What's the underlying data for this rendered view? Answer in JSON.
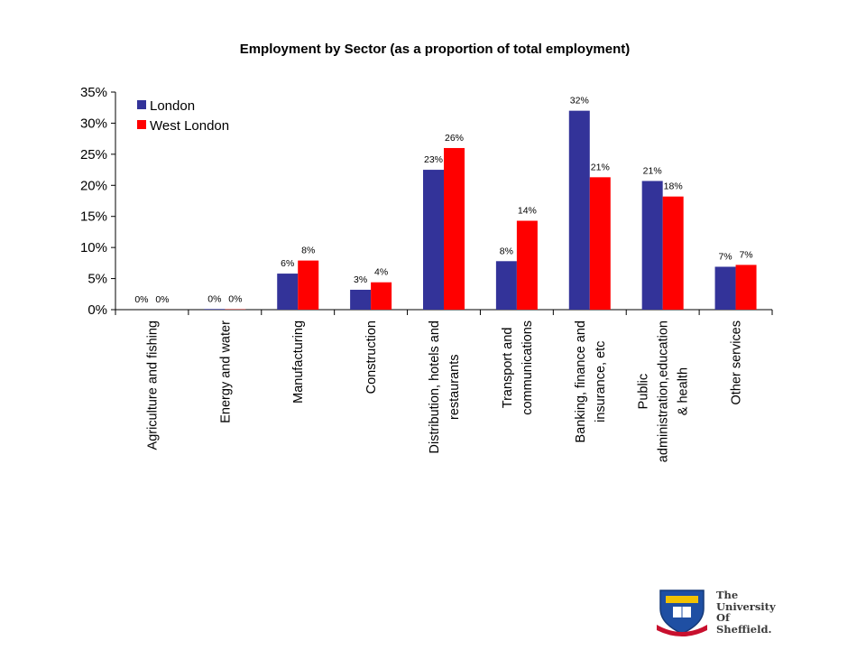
{
  "chart_data": {
    "type": "bar",
    "title": "Employment by Sector (as a proportion of total employment)",
    "categories": [
      [
        "Agriculture and fishing"
      ],
      [
        "Energy and water"
      ],
      [
        "Manufacturing"
      ],
      [
        "Construction"
      ],
      [
        "Distribution, hotels and",
        "restaurants"
      ],
      [
        "Transport and",
        "communications"
      ],
      [
        "Banking, finance and",
        "insurance, etc"
      ],
      [
        "Public",
        "administration,education",
        "& health"
      ],
      [
        "Other services"
      ]
    ],
    "series": [
      {
        "name": "London",
        "color": "#333399",
        "values": [
          0.001,
          0.1,
          5.8,
          3.2,
          22.5,
          7.8,
          32.0,
          20.7,
          6.9
        ],
        "labels": [
          "0%",
          "0%",
          "6%",
          "3%",
          "23%",
          "8%",
          "32%",
          "21%",
          "7%"
        ]
      },
      {
        "name": "West London",
        "color": "#ff0000",
        "values": [
          0.001,
          0.05,
          7.9,
          4.4,
          26.0,
          14.3,
          21.3,
          18.2,
          7.2
        ],
        "labels": [
          "0%",
          "0%",
          "8%",
          "4%",
          "26%",
          "14%",
          "21%",
          "18%",
          "7%"
        ]
      }
    ],
    "yaxis": {
      "min": 0,
      "max": 35,
      "step": 5,
      "tick_labels": [
        "0%",
        "5%",
        "10%",
        "15%",
        "20%",
        "25%",
        "30%",
        "35%"
      ]
    },
    "legend_position": "top-left",
    "grid": false
  },
  "logo": {
    "name": "University of Sheffield crest",
    "lines": [
      "The",
      "University",
      "Of",
      "Sheffield."
    ]
  }
}
